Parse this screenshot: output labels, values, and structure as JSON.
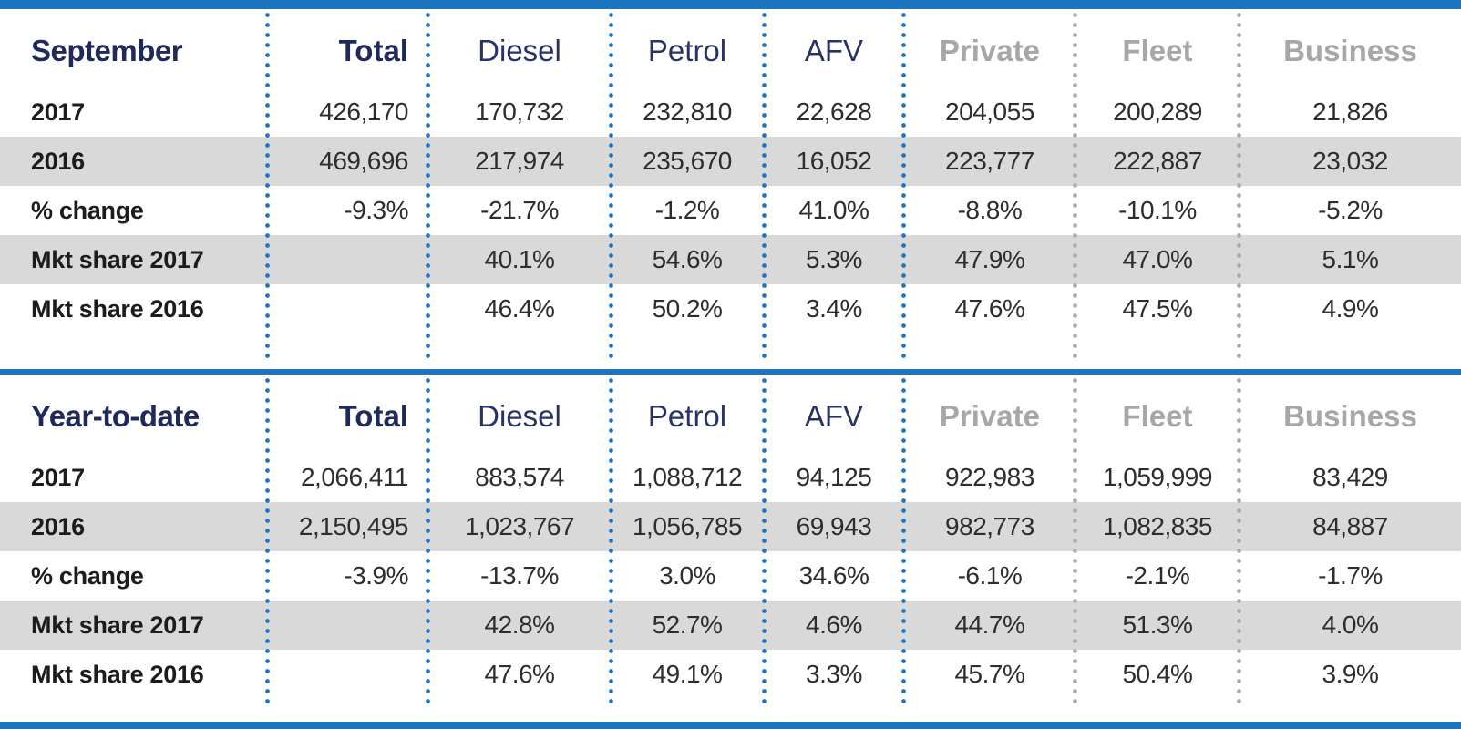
{
  "colors": {
    "accent_blue": "#1b75c0",
    "navy_header": "#1f2a5a",
    "gray_header": "#a6a7a9",
    "row_stripe": "#d9d9d9",
    "value_text": "#2d2d2d",
    "dot_blue": "#1c75c4",
    "dot_gray": "#aaaaaa"
  },
  "chart_data": [
    {
      "type": "table",
      "title": "September",
      "columns": [
        {
          "label": "Total",
          "group": "total"
        },
        {
          "label": "Diesel",
          "group": "fuel"
        },
        {
          "label": "Petrol",
          "group": "fuel"
        },
        {
          "label": "AFV",
          "group": "fuel"
        },
        {
          "label": "Private",
          "group": "buyer"
        },
        {
          "label": "Fleet",
          "group": "buyer"
        },
        {
          "label": "Business",
          "group": "buyer"
        }
      ],
      "rows": [
        {
          "label": "2017",
          "striped": false,
          "values": [
            "426,170",
            "170,732",
            "232,810",
            "22,628",
            "204,055",
            "200,289",
            "21,826"
          ]
        },
        {
          "label": "2016",
          "striped": true,
          "values": [
            "469,696",
            "217,974",
            "235,670",
            "16,052",
            "223,777",
            "222,887",
            "23,032"
          ]
        },
        {
          "label": "% change",
          "striped": false,
          "values": [
            "-9.3%",
            "-21.7%",
            "-1.2%",
            "41.0%",
            "-8.8%",
            "-10.1%",
            "-5.2%"
          ]
        },
        {
          "label": "Mkt share 2017",
          "striped": true,
          "values": [
            "",
            "40.1%",
            "54.6%",
            "5.3%",
            "47.9%",
            "47.0%",
            "5.1%"
          ]
        },
        {
          "label": "Mkt share 2016",
          "striped": false,
          "values": [
            "",
            "46.4%",
            "50.2%",
            "3.4%",
            "47.6%",
            "47.5%",
            "4.9%"
          ]
        }
      ]
    },
    {
      "type": "table",
      "title": "Year-to-date",
      "columns": [
        {
          "label": "Total",
          "group": "total"
        },
        {
          "label": "Diesel",
          "group": "fuel"
        },
        {
          "label": "Petrol",
          "group": "fuel"
        },
        {
          "label": "AFV",
          "group": "fuel"
        },
        {
          "label": "Private",
          "group": "buyer"
        },
        {
          "label": "Fleet",
          "group": "buyer"
        },
        {
          "label": "Business",
          "group": "buyer"
        }
      ],
      "rows": [
        {
          "label": "2017",
          "striped": false,
          "values": [
            "2,066,411",
            "883,574",
            "1,088,712",
            "94,125",
            "922,983",
            "1,059,999",
            "83,429"
          ]
        },
        {
          "label": "2016",
          "striped": true,
          "values": [
            "2,150,495",
            "1,023,767",
            "1,056,785",
            "69,943",
            "982,773",
            "1,082,835",
            "84,887"
          ]
        },
        {
          "label": "% change",
          "striped": false,
          "values": [
            "-3.9%",
            "-13.7%",
            "3.0%",
            "34.6%",
            "-6.1%",
            "-2.1%",
            "-1.7%"
          ]
        },
        {
          "label": "Mkt share 2017",
          "striped": true,
          "values": [
            "",
            "42.8%",
            "52.7%",
            "4.6%",
            "44.7%",
            "51.3%",
            "4.0%"
          ]
        },
        {
          "label": "Mkt share 2016",
          "striped": false,
          "values": [
            "",
            "47.6%",
            "49.1%",
            "3.3%",
            "45.7%",
            "50.4%",
            "3.9%"
          ]
        }
      ]
    }
  ],
  "layout_hints": {
    "column_widths_pct": [
      18.34,
      10.98,
      12.48,
      10.48,
      9.6,
      11.73,
      11.23,
      15.16
    ],
    "separator_positions_pct": [
      18.34,
      29.32,
      41.8,
      52.28,
      61.88,
      73.61,
      84.84
    ],
    "blue_separator_count": 5,
    "grid": "dotted-vertical-only",
    "striped_row_indexes": [
      1,
      3
    ]
  }
}
